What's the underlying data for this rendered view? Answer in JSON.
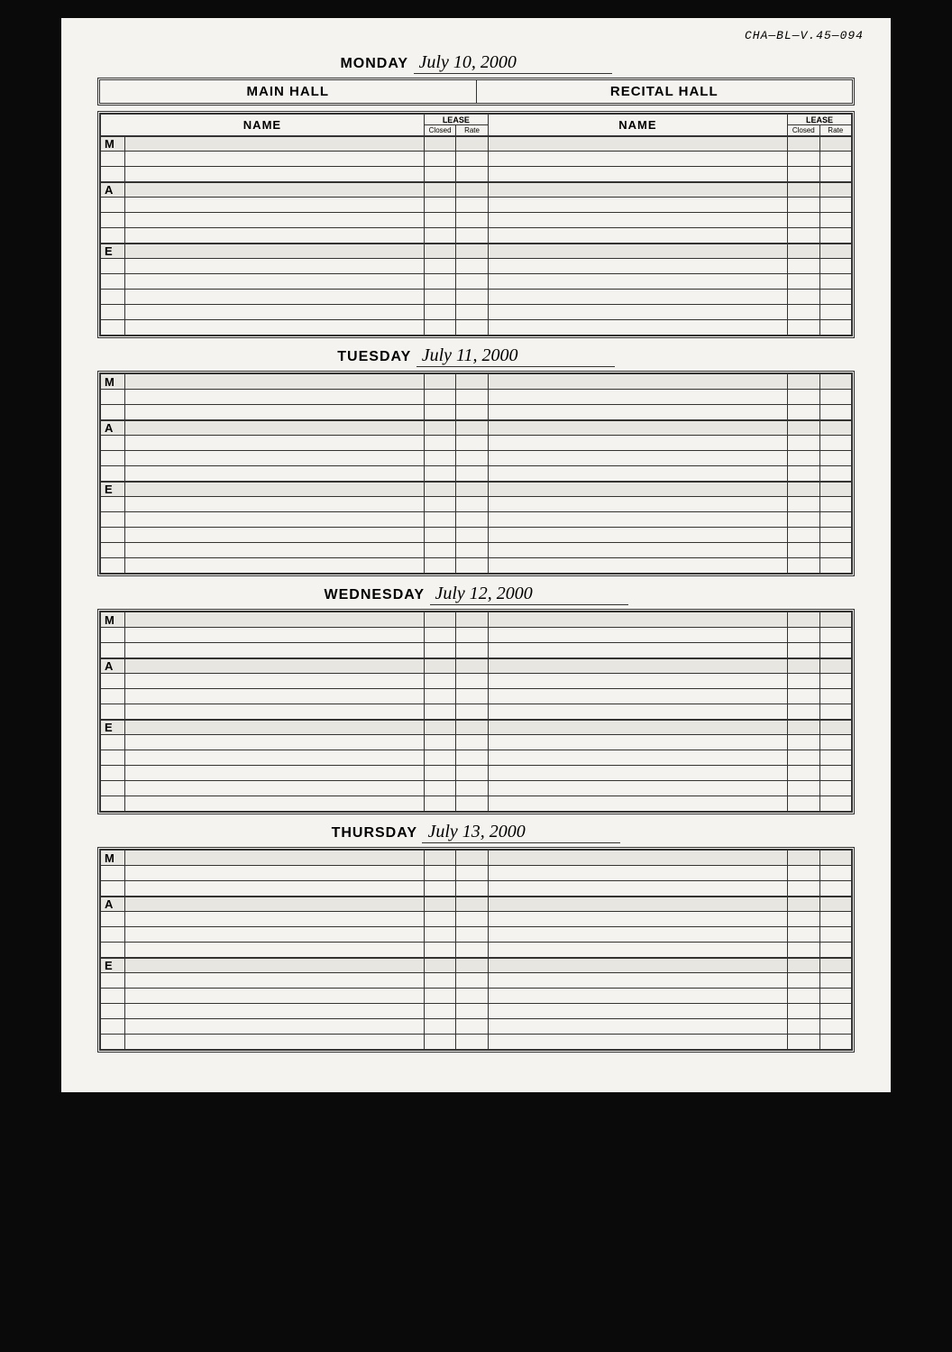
{
  "archive_ref": "CHA—BL—V.45—094",
  "halls": {
    "left": "MAIN HALL",
    "right": "RECITAL HALL"
  },
  "table_headers": {
    "name": "NAME",
    "lease": "LEASE",
    "closed": "Closed",
    "rate": "Rate"
  },
  "time_slots": [
    "M",
    "A",
    "E"
  ],
  "days": [
    {
      "label": "MONDAY",
      "date": "July 10, 2000",
      "show_hall_header": true,
      "show_table_header": true
    },
    {
      "label": "TUESDAY",
      "date": "July 11, 2000",
      "show_hall_header": false,
      "show_table_header": false
    },
    {
      "label": "WEDNESDAY",
      "date": "July 12, 2000",
      "show_hall_header": false,
      "show_table_header": false
    },
    {
      "label": "THURSDAY",
      "date": "July 13, 2000",
      "show_hall_header": false,
      "show_table_header": false
    }
  ],
  "colors": {
    "page_bg": "#f5f3ef",
    "shade_bg": "#e8e6e0",
    "border": "#333333",
    "outer_bg": "#0a0a0a"
  },
  "rows_per_slot": {
    "M": 3,
    "A": 4,
    "E": 6
  }
}
